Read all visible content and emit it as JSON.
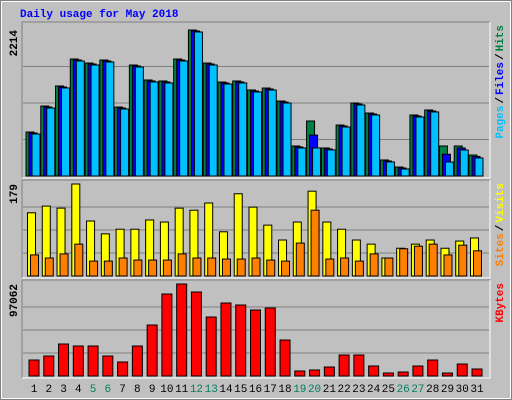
{
  "title": "Daily usage for May 2018",
  "legend_separator": "/",
  "chart_data": [
    {
      "type": "bar",
      "ylim": [
        0,
        2214
      ],
      "yticks": [
        2214
      ],
      "series": [
        {
          "name": "Hits",
          "color": "#008040",
          "values": [
            667,
            1061,
            1365,
            1774,
            1713,
            1759,
            1046,
            1683,
            1456,
            1441,
            1774,
            2214,
            1713,
            1425,
            1441,
            1304,
            1334,
            1137,
            455,
            834,
            425,
            773,
            1107,
            955,
            243,
            136,
            925,
            1001,
            455,
            455,
            318
          ]
        },
        {
          "name": "Files",
          "color": "#0000ff",
          "values": [
            652,
            1046,
            1350,
            1759,
            1698,
            1744,
            1031,
            1668,
            1441,
            1426,
            1759,
            2199,
            1698,
            1410,
            1426,
            1289,
            1319,
            1122,
            440,
            620,
            410,
            758,
            1092,
            940,
            228,
            121,
            910,
            986,
            330,
            425,
            296
          ]
        },
        {
          "name": "Pages",
          "color": "#00c0ff",
          "values": [
            637,
            1031,
            1335,
            1744,
            1683,
            1729,
            1016,
            1653,
            1426,
            1411,
            1744,
            2184,
            1683,
            1395,
            1411,
            1274,
            1304,
            1107,
            425,
            425,
            395,
            743,
            1077,
            925,
            213,
            106,
            895,
            971,
            212,
            394,
            273
          ]
        }
      ]
    },
    {
      "type": "bar",
      "ylim": [
        0,
        179
      ],
      "yticks": [
        179
      ],
      "series": [
        {
          "name": "Visits",
          "color": "#ffff00",
          "values": [
            123,
            136,
            132,
            179,
            107,
            82,
            91,
            91,
            109,
            105,
            132,
            128,
            142,
            86,
            160,
            134,
            99,
            70,
            105,
            165,
            105,
            91,
            70,
            62,
            35,
            54,
            62,
            70,
            54,
            68,
            74
          ]
        },
        {
          "name": "Sites",
          "color": "#ff8000",
          "values": [
            41,
            35,
            43,
            62,
            29,
            29,
            35,
            31,
            31,
            31,
            43,
            35,
            35,
            33,
            33,
            35,
            31,
            29,
            64,
            128,
            33,
            35,
            29,
            43,
            35,
            53,
            58,
            62,
            41,
            60,
            49
          ]
        }
      ]
    },
    {
      "type": "bar",
      "ylim": [
        0,
        97062
      ],
      "yticks": [
        97062
      ],
      "categories": [
        "1",
        "2",
        "3",
        "4",
        "5",
        "6",
        "7",
        "8",
        "9",
        "10",
        "11",
        "12",
        "13",
        "14",
        "15",
        "16",
        "17",
        "18",
        "19",
        "20",
        "21",
        "22",
        "23",
        "24",
        "25",
        "26",
        "27",
        "28",
        "29",
        "30",
        "31"
      ],
      "category_colors": [
        "#000000",
        "#000000",
        "#000000",
        "#000000",
        "#00805c",
        "#00805c",
        "#000000",
        "#000000",
        "#000000",
        "#000000",
        "#000000",
        "#00805c",
        "#00805c",
        "#000000",
        "#000000",
        "#000000",
        "#000000",
        "#000000",
        "#00805c",
        "#00805c",
        "#000000",
        "#000000",
        "#000000",
        "#000000",
        "#000000",
        "#00805c",
        "#00805c",
        "#000000",
        "#000000",
        "#000000",
        "#000000"
      ],
      "series": [
        {
          "name": "KBytes",
          "color": "#ff0000",
          "values": [
            16880,
            21100,
            33760,
            31650,
            31650,
            21100,
            14770,
            31650,
            53805,
            86510,
            97062,
            88620,
            62245,
            77015,
            74905,
            69630,
            71740,
            37980,
            5275,
            6330,
            9495,
            22155,
            22155,
            10550,
            3165,
            4220,
            10550,
            16880,
            3165,
            12660,
            7385
          ]
        }
      ]
    }
  ]
}
